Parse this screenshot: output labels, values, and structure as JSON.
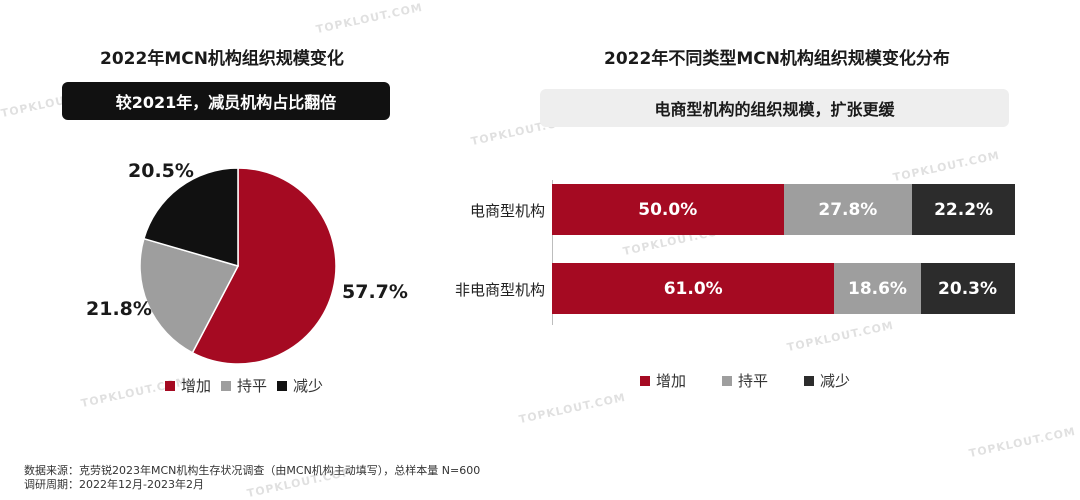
{
  "left_title": "2022年MCN机构组织规模变化",
  "left_banner": "较2021年，减员机构占比翻倍",
  "right_title": "2022年不同类型MCN机构组织规模变化分布",
  "right_banner": "电商型机构的组织规模，扩张更缓",
  "watermark": "TOPKLOUT.COM",
  "colors": {
    "increase": "#a50a22",
    "flat": "#9e9e9e",
    "decrease": "#111111",
    "decrease_bar": "#2c2c2c"
  },
  "chart_data": [
    {
      "type": "pie",
      "title": "2022年MCN机构组织规模变化",
      "labels": [
        "增加",
        "持平",
        "减少"
      ],
      "values": [
        57.7,
        21.8,
        20.5
      ],
      "value_labels": [
        "57.7%",
        "21.8%",
        "20.5%"
      ],
      "legend": "bottom"
    },
    {
      "type": "bar",
      "orientation": "horizontal",
      "stacked": true,
      "title": "2022年不同类型MCN机构组织规模变化分布",
      "categories": [
        "电商型机构",
        "非电商型机构"
      ],
      "series": [
        {
          "name": "增加",
          "values": [
            50.0,
            61.0
          ],
          "labels": [
            "50.0%",
            "61.0%"
          ]
        },
        {
          "name": "持平",
          "values": [
            27.8,
            18.6
          ],
          "labels": [
            "27.8%",
            "18.6%"
          ]
        },
        {
          "name": "减少",
          "values": [
            22.2,
            20.3
          ],
          "labels": [
            "22.2%",
            "20.3%"
          ]
        }
      ],
      "xlim": [
        0,
        100
      ],
      "legend": "bottom"
    }
  ],
  "footer": {
    "source": "数据来源：克劳锐2023年MCN机构生存状况调查（由MCN机构主动填写），总样本量 N=600",
    "period": "调研周期：2022年12月-2023年2月"
  }
}
